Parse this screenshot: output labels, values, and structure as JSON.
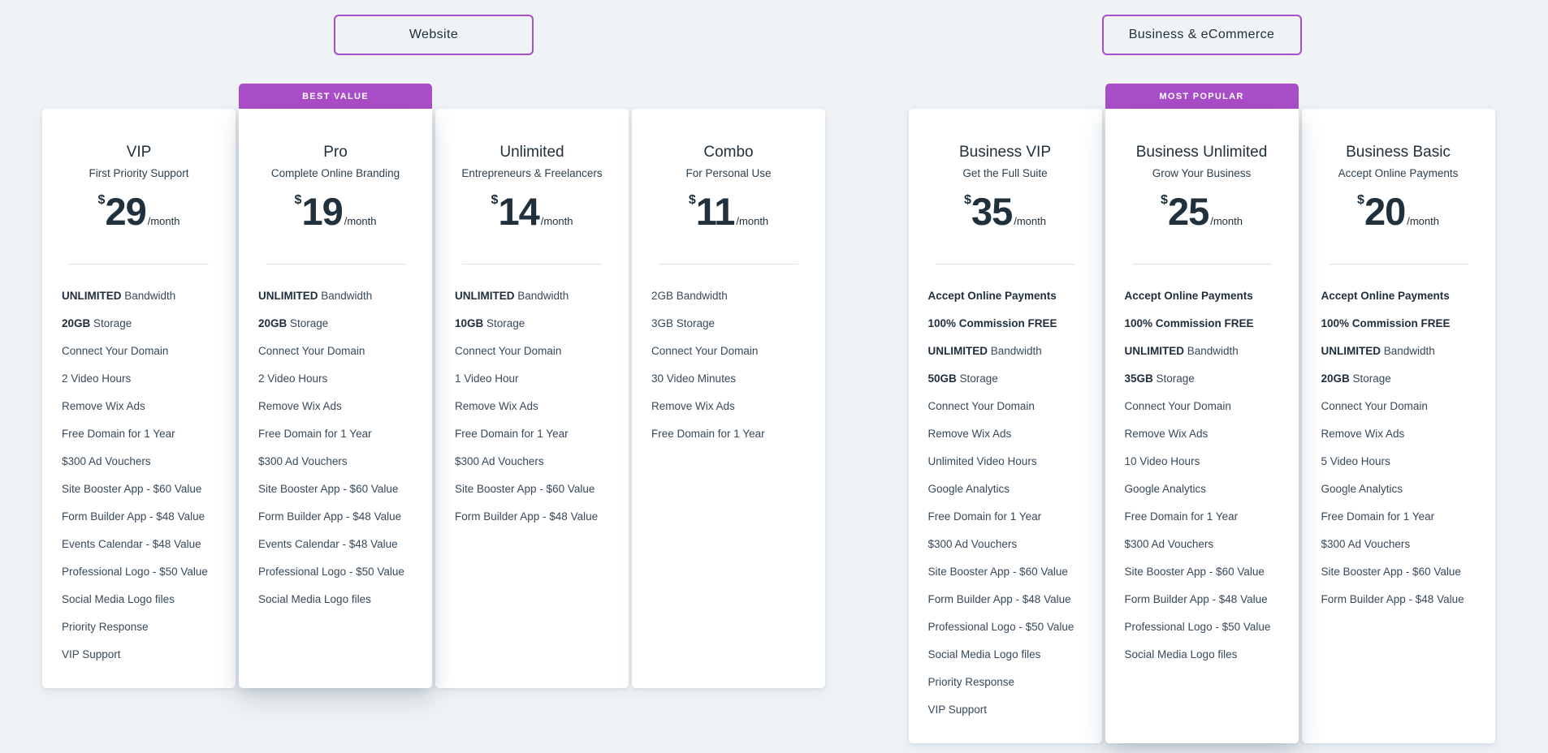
{
  "theme": {
    "accent_purple": "#aa4dc8",
    "dark_navy": "#20303c",
    "page_background": "#eff3f6",
    "card_background": "#ffffff"
  },
  "sections": [
    {
      "id": "website",
      "button_label": "Website",
      "plans": [
        {
          "name": "VIP",
          "tagline": "First Priority Support",
          "currency": "$",
          "price": "29",
          "period": "/month",
          "badge": "",
          "features": [
            {
              "b": "UNLIMITED",
              "t": " Bandwidth"
            },
            {
              "b": "20GB",
              "t": " Storage"
            },
            {
              "b": "",
              "t": "Connect Your Domain"
            },
            {
              "b": "",
              "t": "2 Video Hours"
            },
            {
              "b": "",
              "t": "Remove Wix Ads"
            },
            {
              "b": "",
              "t": "Free Domain for 1 Year"
            },
            {
              "b": "",
              "t": "$300 Ad Vouchers"
            },
            {
              "b": "",
              "t": "Site Booster App - $60 Value"
            },
            {
              "b": "",
              "t": "Form Builder App - $48 Value"
            },
            {
              "b": "",
              "t": "Events Calendar - $48 Value"
            },
            {
              "b": "",
              "t": "Professional Logo - $50 Value"
            },
            {
              "b": "",
              "t": "Social Media Logo files"
            },
            {
              "b": "",
              "t": "Priority Response"
            },
            {
              "b": "",
              "t": "VIP Support"
            }
          ]
        },
        {
          "name": "Pro",
          "tagline": "Complete Online Branding",
          "currency": "$",
          "price": "19",
          "period": "/month",
          "badge": "BEST VALUE",
          "features": [
            {
              "b": "UNLIMITED",
              "t": " Bandwidth"
            },
            {
              "b": "20GB",
              "t": " Storage"
            },
            {
              "b": "",
              "t": "Connect Your Domain"
            },
            {
              "b": "",
              "t": "2 Video Hours"
            },
            {
              "b": "",
              "t": "Remove Wix Ads"
            },
            {
              "b": "",
              "t": "Free Domain for 1 Year"
            },
            {
              "b": "",
              "t": "$300 Ad Vouchers"
            },
            {
              "b": "",
              "t": "Site Booster App - $60 Value"
            },
            {
              "b": "",
              "t": "Form Builder App - $48 Value"
            },
            {
              "b": "",
              "t": "Events Calendar - $48 Value"
            },
            {
              "b": "",
              "t": "Professional Logo - $50 Value"
            },
            {
              "b": "",
              "t": "Social Media Logo files"
            }
          ]
        },
        {
          "name": "Unlimited",
          "tagline": "Entrepreneurs & Freelancers",
          "currency": "$",
          "price": "14",
          "period": "/month",
          "badge": "",
          "features": [
            {
              "b": "UNLIMITED",
              "t": " Bandwidth"
            },
            {
              "b": "10GB",
              "t": " Storage"
            },
            {
              "b": "",
              "t": "Connect Your Domain"
            },
            {
              "b": "",
              "t": "1 Video Hour"
            },
            {
              "b": "",
              "t": "Remove Wix Ads"
            },
            {
              "b": "",
              "t": "Free Domain for 1 Year"
            },
            {
              "b": "",
              "t": "$300 Ad Vouchers"
            },
            {
              "b": "",
              "t": "Site Booster App - $60 Value"
            },
            {
              "b": "",
              "t": "Form Builder App - $48 Value"
            }
          ]
        },
        {
          "name": "Combo",
          "tagline": "For Personal Use",
          "currency": "$",
          "price": "11",
          "period": "/month",
          "badge": "",
          "features": [
            {
              "b": "",
              "t": "2GB Bandwidth"
            },
            {
              "b": "",
              "t": "3GB Storage"
            },
            {
              "b": "",
              "t": "Connect Your Domain"
            },
            {
              "b": "",
              "t": "30 Video Minutes"
            },
            {
              "b": "",
              "t": "Remove Wix Ads"
            },
            {
              "b": "",
              "t": "Free Domain for 1 Year"
            }
          ]
        }
      ]
    },
    {
      "id": "business",
      "button_label": "Business & eCommerce",
      "plans": [
        {
          "name": "Business VIP",
          "tagline": "Get the Full Suite",
          "currency": "$",
          "price": "35",
          "period": "/month",
          "badge": "",
          "features": [
            {
              "b": "Accept Online Payments",
              "t": ""
            },
            {
              "b": "100% Commission FREE",
              "t": ""
            },
            {
              "b": "UNLIMITED",
              "t": " Bandwidth"
            },
            {
              "b": "50GB",
              "t": " Storage"
            },
            {
              "b": "",
              "t": "Connect Your Domain"
            },
            {
              "b": "",
              "t": "Remove Wix Ads"
            },
            {
              "b": "",
              "t": "Unlimited Video Hours"
            },
            {
              "b": "",
              "t": "Google Analytics"
            },
            {
              "b": "",
              "t": "Free Domain for 1 Year"
            },
            {
              "b": "",
              "t": "$300 Ad Vouchers"
            },
            {
              "b": "",
              "t": "Site Booster App - $60 Value"
            },
            {
              "b": "",
              "t": "Form Builder App - $48 Value"
            },
            {
              "b": "",
              "t": "Professional Logo - $50 Value"
            },
            {
              "b": "",
              "t": "Social Media Logo files"
            },
            {
              "b": "",
              "t": "Priority Response"
            },
            {
              "b": "",
              "t": "VIP Support"
            }
          ]
        },
        {
          "name": "Business Unlimited",
          "tagline": "Grow Your Business",
          "currency": "$",
          "price": "25",
          "period": "/month",
          "badge": "MOST POPULAR",
          "features": [
            {
              "b": "Accept Online Payments",
              "t": ""
            },
            {
              "b": "100% Commission FREE",
              "t": ""
            },
            {
              "b": "UNLIMITED",
              "t": " Bandwidth"
            },
            {
              "b": "35GB",
              "t": " Storage"
            },
            {
              "b": "",
              "t": "Connect Your Domain"
            },
            {
              "b": "",
              "t": "Remove Wix Ads"
            },
            {
              "b": "",
              "t": "10 Video Hours"
            },
            {
              "b": "",
              "t": "Google Analytics"
            },
            {
              "b": "",
              "t": "Free Domain for 1 Year"
            },
            {
              "b": "",
              "t": "$300 Ad Vouchers"
            },
            {
              "b": "",
              "t": "Site Booster App - $60 Value"
            },
            {
              "b": "",
              "t": "Form Builder App - $48 Value"
            },
            {
              "b": "",
              "t": "Professional Logo - $50 Value"
            },
            {
              "b": "",
              "t": "Social Media Logo files"
            }
          ]
        },
        {
          "name": "Business Basic",
          "tagline": "Accept Online Payments",
          "currency": "$",
          "price": "20",
          "period": "/month",
          "badge": "",
          "features": [
            {
              "b": "Accept Online Payments",
              "t": ""
            },
            {
              "b": "100% Commission FREE",
              "t": ""
            },
            {
              "b": "UNLIMITED",
              "t": " Bandwidth"
            },
            {
              "b": "20GB",
              "t": " Storage"
            },
            {
              "b": "",
              "t": "Connect Your Domain"
            },
            {
              "b": "",
              "t": "Remove Wix Ads"
            },
            {
              "b": "",
              "t": "5 Video Hours"
            },
            {
              "b": "",
              "t": "Google Analytics"
            },
            {
              "b": "",
              "t": "Free Domain for 1 Year"
            },
            {
              "b": "",
              "t": "$300 Ad Vouchers"
            },
            {
              "b": "",
              "t": "Site Booster App - $60 Value"
            },
            {
              "b": "",
              "t": "Form Builder App - $48 Value"
            }
          ]
        }
      ]
    }
  ]
}
